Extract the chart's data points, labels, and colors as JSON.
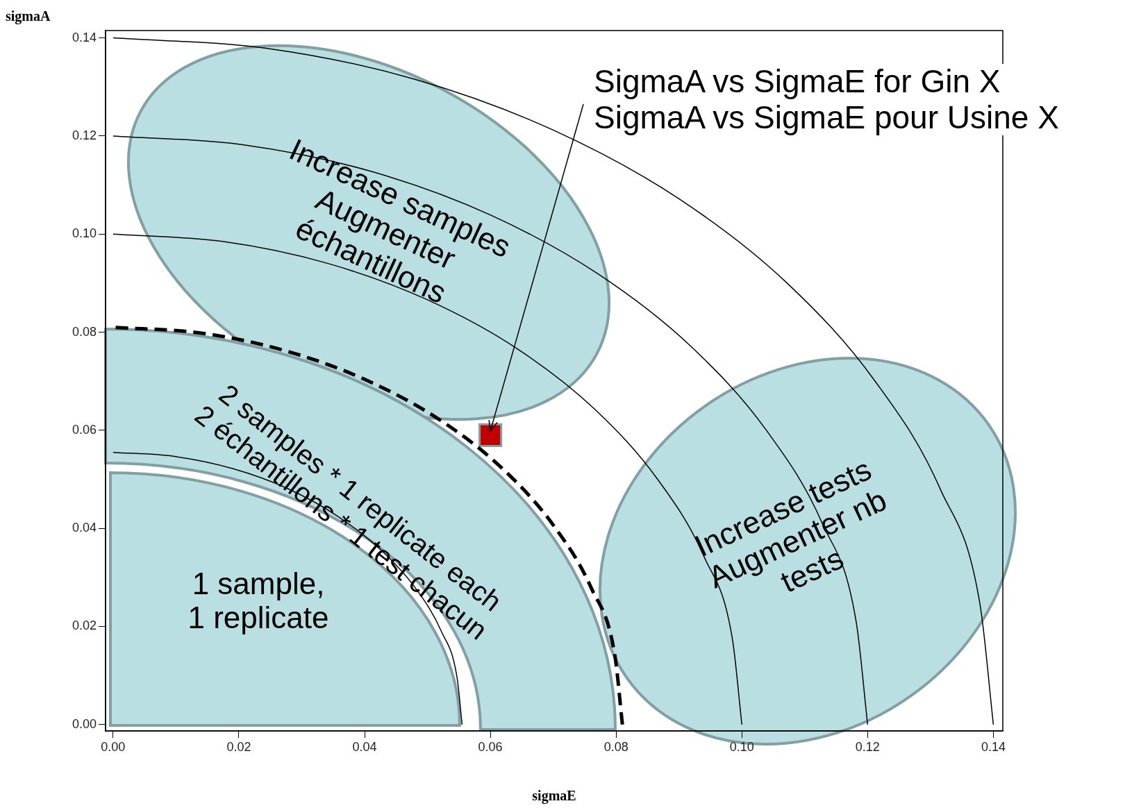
{
  "chart_data": {
    "type": "line",
    "xlabel": "sigmaE",
    "ylabel": "sigmaA",
    "xlim": [
      -0.0012,
      0.1415
    ],
    "ylim": [
      -0.0013,
      0.1415
    ],
    "xticks": [
      {
        "value": 0,
        "label": "0.00"
      },
      {
        "value": 0.02,
        "label": "0.02"
      },
      {
        "value": 0.04,
        "label": "0.04"
      },
      {
        "value": 0.06,
        "label": "0.06"
      },
      {
        "value": 0.08,
        "label": "0.08"
      },
      {
        "value": 0.1,
        "label": "0.10"
      },
      {
        "value": 0.12,
        "label": "0.12"
      },
      {
        "value": 0.14,
        "label": "0.14"
      }
    ],
    "yticks": [
      {
        "value": 0,
        "label": "0.00"
      },
      {
        "value": 0.02,
        "label": "0.02"
      },
      {
        "value": 0.04,
        "label": "0.04"
      },
      {
        "value": 0.06,
        "label": "0.06"
      },
      {
        "value": 0.08,
        "label": "0.08"
      },
      {
        "value": 0.1,
        "label": "0.10"
      },
      {
        "value": 0.12,
        "label": "0.12"
      },
      {
        "value": 0.14,
        "label": "0.14"
      }
    ],
    "grid": false,
    "legend": false,
    "series": [
      {
        "color": "#000000",
        "line_style": "solid",
        "x": [
          0.14,
          0.1379,
          0.1316,
          0.1212,
          0.1072,
          0.09,
          0.07,
          0.0479,
          0.0243,
          0
        ],
        "values": [
          0,
          0.0243,
          0.0479,
          0.07,
          0.09,
          0.1072,
          0.1212,
          0.1316,
          0.1379,
          0.14
        ]
      },
      {
        "color": "#000000",
        "line_style": "solid",
        "x": [
          0.12,
          0.1182,
          0.1128,
          0.1039,
          0.0919,
          0.0771,
          0.06,
          0.041,
          0.0208,
          0
        ],
        "values": [
          0,
          0.0208,
          0.041,
          0.06,
          0.0771,
          0.0919,
          0.1039,
          0.1128,
          0.1182,
          0.12
        ]
      },
      {
        "color": "#000000",
        "line_style": "solid",
        "x": [
          0.1,
          0.0985,
          0.094,
          0.0866,
          0.0766,
          0.0643,
          0.05,
          0.0342,
          0.0174,
          0
        ],
        "values": [
          0,
          0.0174,
          0.0342,
          0.05,
          0.0643,
          0.0766,
          0.0866,
          0.094,
          0.0985,
          0.1
        ]
      },
      {
        "color": "#000000",
        "line_style": "dashed",
        "x": [
          0.081,
          0.0798,
          0.0761,
          0.0701,
          0.062,
          0.0521,
          0.0405,
          0.0277,
          0.0141,
          0
        ],
        "values": [
          0,
          0.0141,
          0.0277,
          0.0405,
          0.0521,
          0.062,
          0.0701,
          0.0761,
          0.0798,
          0.081
        ]
      },
      {
        "color": "#000000",
        "line_style": "solid",
        "x": [
          0.0555,
          0.0547,
          0.0522,
          0.0481,
          0.0425,
          0.0357,
          0.0278,
          0.019,
          0.0096,
          0
        ],
        "values": [
          0,
          0.0096,
          0.019,
          0.0278,
          0.0357,
          0.0425,
          0.0481,
          0.0522,
          0.0547,
          0.0555
        ]
      },
      {
        "type": "scatter",
        "color": "#c00000",
        "marker": "square",
        "x": [
          0.06
        ],
        "values": [
          0.059
        ]
      }
    ],
    "annotations": [
      {
        "text": "SigmaA vs SigmaE for Gin X\nSigmaA vs SigmaE pour Usine X",
        "x": 0.06,
        "y": 0.059
      },
      "Increase samples\nAugmenter\néchantillons",
      "2 samples * 1 replicate each\n2 échantillons * 1 test chacun",
      "1 sample,\n1 replicate",
      "Increase tests\nAugmenter nb\ntests"
    ]
  }
}
